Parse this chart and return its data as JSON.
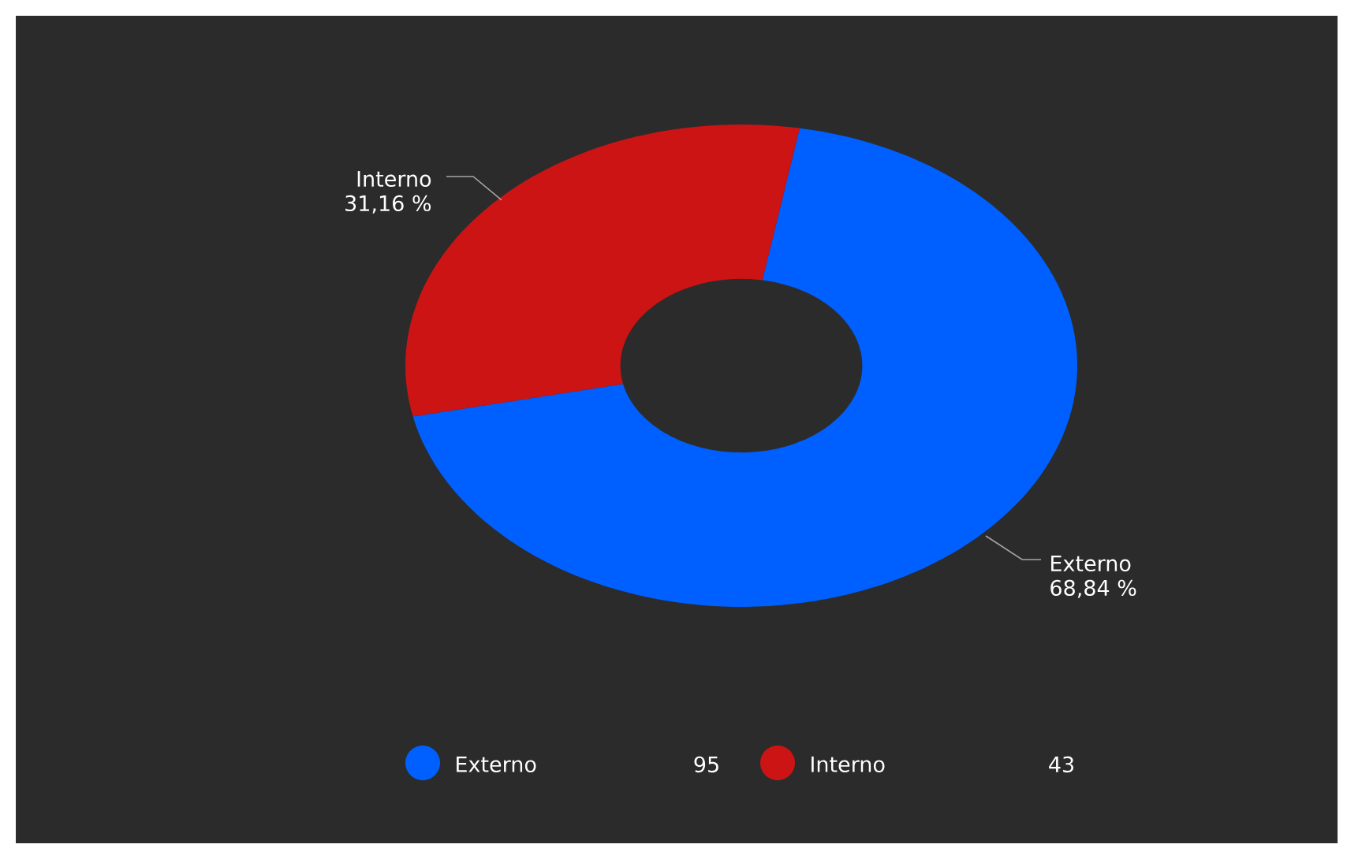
{
  "chart_data": {
    "type": "donut",
    "categories": [
      "Externo",
      "Interno"
    ],
    "values": [
      68.84,
      31.16
    ],
    "colors": [
      "#0060ff",
      "#cc1414"
    ],
    "value_labels": [
      "68,84 %",
      "31,16 %"
    ],
    "annotations": [
      "95",
      "43"
    ],
    "legend": "bottom"
  }
}
